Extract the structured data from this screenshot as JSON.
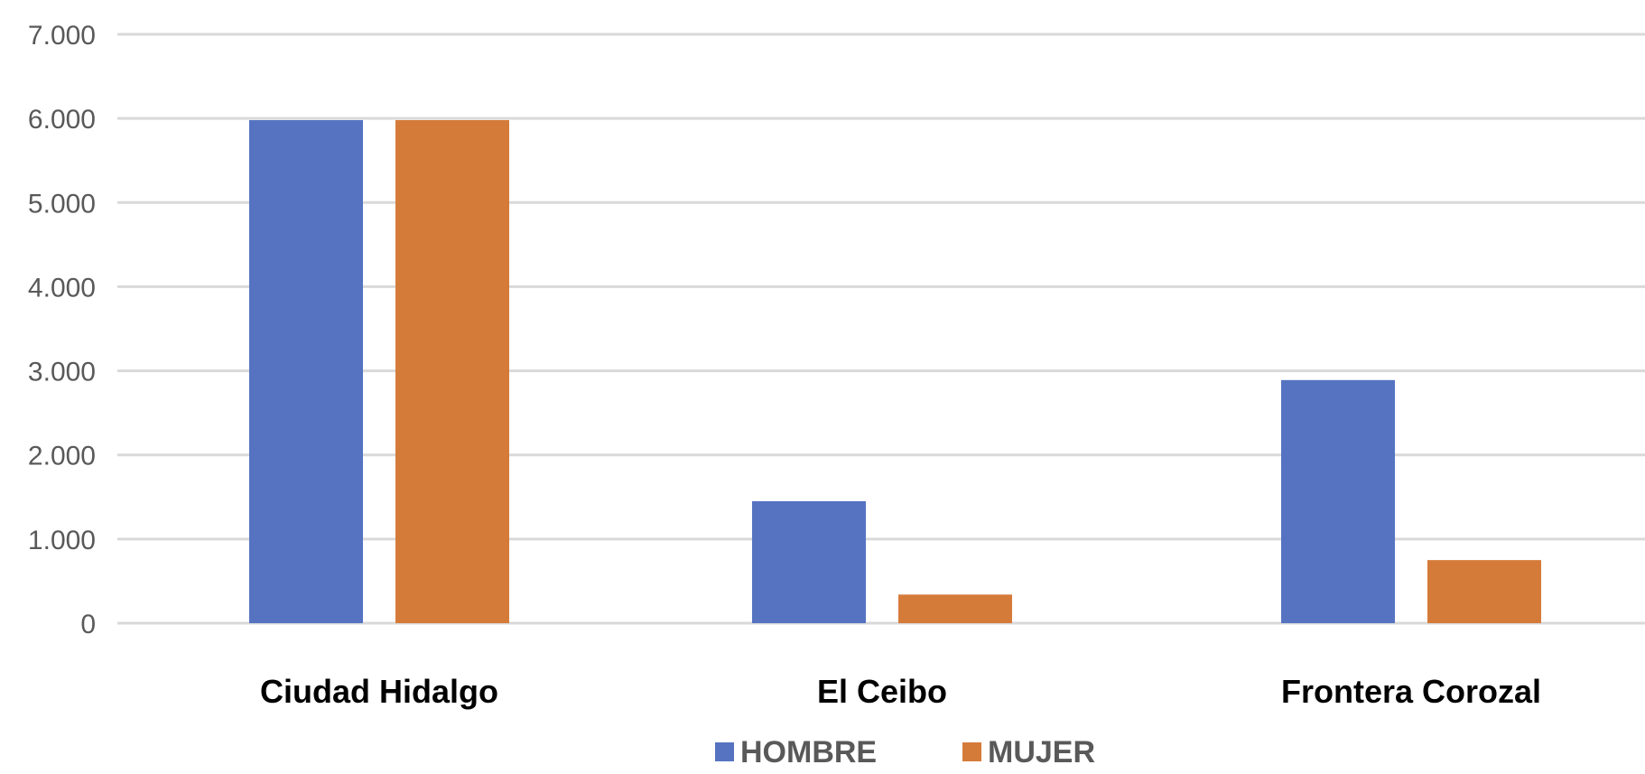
{
  "chart_data": {
    "type": "bar",
    "categories": [
      "Ciudad Hidalgo",
      "El Ceibo",
      "Frontera Corozal"
    ],
    "series": [
      {
        "name": "HOMBRE",
        "values": [
          5980,
          1450,
          2890
        ],
        "color": "#5573c1"
      },
      {
        "name": "MUJER",
        "values": [
          5980,
          340,
          750
        ],
        "color": "#d57b3a"
      }
    ],
    "ylim": [
      0,
      7000
    ],
    "yticks": [
      0,
      1000,
      2000,
      3000,
      4000,
      5000,
      6000,
      7000
    ],
    "ytick_labels": [
      "0",
      "1.000",
      "2.000",
      "3.000",
      "4.000",
      "5.000",
      "6.000",
      "7.000"
    ],
    "grid": true,
    "legend_position": "bottom-center"
  }
}
